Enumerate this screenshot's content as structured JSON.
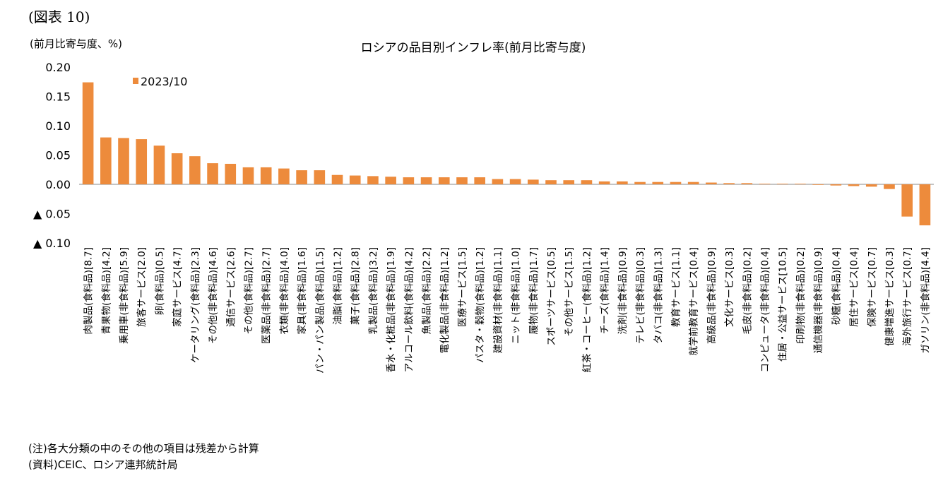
{
  "figure_label": "(図表 10)",
  "unit_label": "(前月比寄与度、%)",
  "notes": {
    "note": "(注)各大分類の中のその他の項目は残差から計算",
    "source": "(資料)CEIC、ロシア連邦統計局"
  },
  "colors": {
    "bar": "#ED8B3C",
    "zero_line": "#888888"
  },
  "chart_data": {
    "type": "bar",
    "title": "ロシアの品目別インフレ率(前月比寄与度)",
    "ylim": [
      -0.1,
      0.2
    ],
    "yticks": [
      0.2,
      0.15,
      0.1,
      0.05,
      0.0,
      -0.05,
      -0.1
    ],
    "ytick_labels": [
      "0.20",
      "0.15",
      "0.10",
      "0.05",
      "0.00",
      "▲ 0.05",
      "▲ 0.10"
    ],
    "grid": false,
    "legend_position": "top-left",
    "categories": [
      "肉製品(食料品)[8.7]",
      "青果物(食料品)[4.2]",
      "乗用車(非食料品)[5.9]",
      "旅客サービス[2.0]",
      "卵(食料品)[0.5]",
      "家庭サービス[4.7]",
      "ケータリング(食料品)[2.3]",
      "その他(非食料品)[4.6]",
      "通信サービス[2.6]",
      "その他(食料品)[2.7]",
      "医薬品(非食料品)[2.7]",
      "衣類(非食料品)[4.0]",
      "家具(非食料品)[1.6]",
      "パン・パン製品(食料品)[1.5]",
      "油脂(食料品)[1.2]",
      "菓子(食料品)[2.8]",
      "乳製品(食料品)[3.2]",
      "香水・化粧品(非食料品)[1.9]",
      "アルコール飲料(食料品)[4.2]",
      "魚製品(食料品)[2.2]",
      "電化製品(非食料品)[1.2]",
      "医療サービス[1.5]",
      "パスタ・穀物(食料品)[1.2]",
      "建設資材(非食料品)[1.1]",
      "ニット(非食料品)[1.0]",
      "履物(非食料品)[1.7]",
      "スポーツサービス[0.5]",
      "その他サービス[1.5]",
      "紅茶・コーヒー(食料品)[1.2]",
      "チーズ(食料品)[1.4]",
      "洗剤(非食料品)[0.9]",
      "テレビ(非食料品)[0.3]",
      "タバコ(非食料品)[1.3]",
      "教育サービス[1.1]",
      "就学前教育サービス[0.4]",
      "高級品(非食料品)[0.9]",
      "文化サービス[0.3]",
      "毛皮(非食料品)[0.2]",
      "コンピュータ(非食料品)[0.4]",
      "住居・公益サービス[10.5]",
      "印刷物(非食料品)[0.2]",
      "通信機器(非食料品)[0.9]",
      "砂糖(食料品)[0.4]",
      "居住サービス[0.4]",
      "保険サービス[0.7]",
      "健康増進サービス[0.3]",
      "海外旅行サービス[0.7]",
      "ガソリン(非食料品)[4.4]"
    ],
    "series": [
      {
        "name": "2023/10",
        "values": [
          0.174,
          0.08,
          0.079,
          0.077,
          0.066,
          0.053,
          0.048,
          0.036,
          0.035,
          0.029,
          0.029,
          0.027,
          0.024,
          0.024,
          0.016,
          0.015,
          0.014,
          0.013,
          0.012,
          0.012,
          0.012,
          0.012,
          0.012,
          0.009,
          0.009,
          0.008,
          0.007,
          0.007,
          0.007,
          0.005,
          0.005,
          0.004,
          0.004,
          0.004,
          0.004,
          0.003,
          0.002,
          0.002,
          0.001,
          0.001,
          0.001,
          -0.001,
          -0.002,
          -0.003,
          -0.004,
          -0.008,
          -0.055,
          -0.07
        ]
      }
    ]
  }
}
